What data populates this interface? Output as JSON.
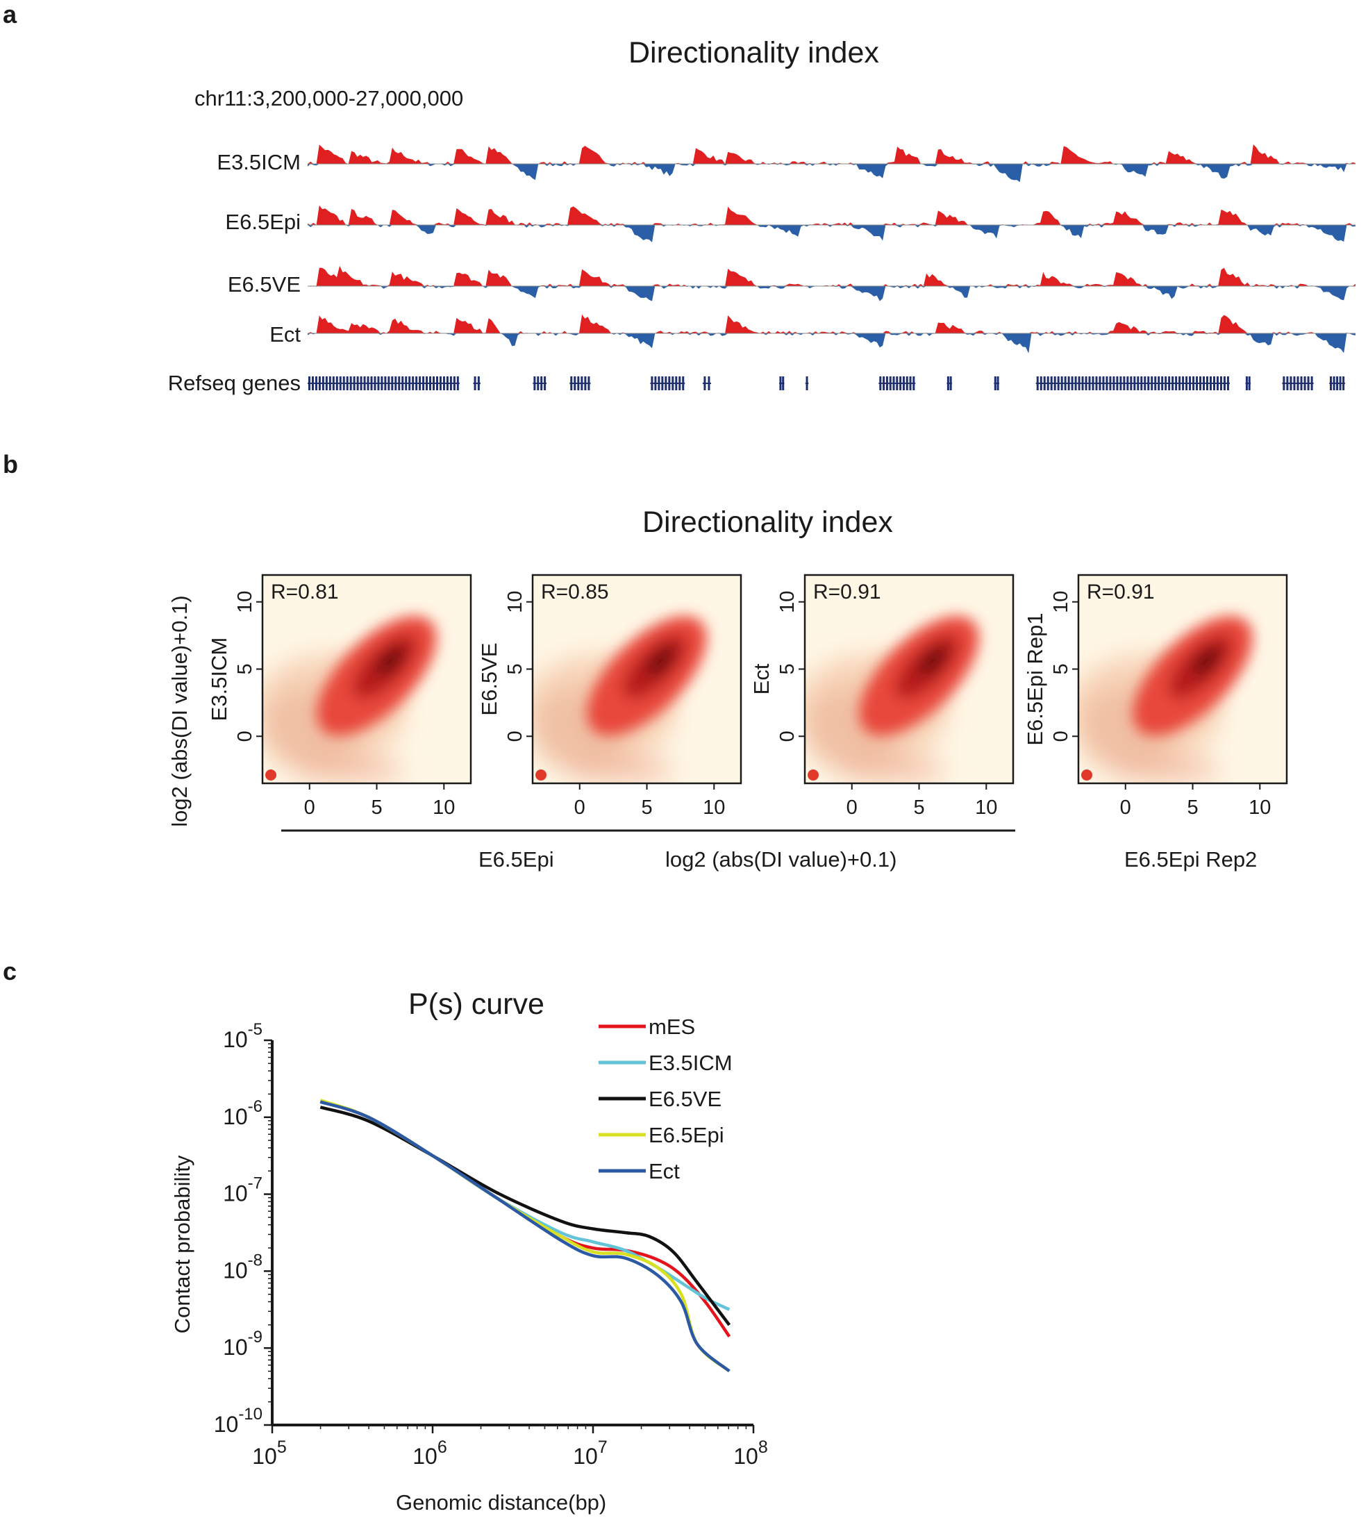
{
  "panel_a": {
    "letter": "a",
    "title": "Directionality index",
    "region": "chr11:3,200,000-27,000,000",
    "gene_track_label": "Refseq genes",
    "colors": {
      "positive": "#e02020",
      "negative": "#2a5fa8",
      "genes": "#1f2f6e"
    }
  },
  "panel_b": {
    "letter": "b",
    "title": "Directionality index",
    "y_axis_title": "log2 (abs(DI value)+0.1)",
    "x_axis_title": "log2 (abs(DI value)+0.1)",
    "x_group_label": "E6.5Epi",
    "x_rep_label": "E6.5Epi Rep2"
  },
  "panel_c": {
    "letter": "c"
  },
  "chart_data": [
    {
      "type": "area",
      "id": "di_tracks",
      "title": "Directionality index",
      "region": "chr11:3,200,000-27,000,000",
      "x_range_bp": [
        3200000,
        27000000
      ],
      "series": [
        {
          "name": "E3.5ICM",
          "peaks": [
            [
              0.01,
              0.9
            ],
            [
              0.04,
              0.6
            ],
            [
              0.08,
              0.7
            ],
            [
              0.14,
              0.8
            ],
            [
              0.17,
              0.9
            ],
            [
              0.22,
              -0.8
            ],
            [
              0.26,
              0.9
            ],
            [
              0.35,
              -0.6
            ],
            [
              0.37,
              0.7
            ],
            [
              0.4,
              0.5
            ],
            [
              0.55,
              -0.7
            ],
            [
              0.56,
              0.8
            ],
            [
              0.6,
              0.7
            ],
            [
              0.68,
              -0.9
            ],
            [
              0.72,
              0.8
            ],
            [
              0.8,
              -0.7
            ],
            [
              0.82,
              0.6
            ],
            [
              0.88,
              -0.8
            ],
            [
              0.9,
              0.9
            ],
            [
              0.99,
              -0.3
            ]
          ]
        },
        {
          "name": "E6.5Epi",
          "peaks": [
            [
              0.01,
              0.9
            ],
            [
              0.04,
              0.7
            ],
            [
              0.08,
              0.8
            ],
            [
              0.12,
              -0.5
            ],
            [
              0.14,
              0.8
            ],
            [
              0.17,
              0.9
            ],
            [
              0.25,
              0.9
            ],
            [
              0.33,
              -0.9
            ],
            [
              0.4,
              0.9
            ],
            [
              0.47,
              -0.5
            ],
            [
              0.55,
              -0.7
            ],
            [
              0.6,
              0.7
            ],
            [
              0.66,
              -0.6
            ],
            [
              0.7,
              0.7
            ],
            [
              0.74,
              -0.6
            ],
            [
              0.77,
              0.8
            ],
            [
              0.82,
              -0.5
            ],
            [
              0.87,
              0.9
            ],
            [
              0.92,
              -0.5
            ],
            [
              0.99,
              -0.9
            ]
          ]
        },
        {
          "name": "E6.5VE",
          "peaks": [
            [
              0.01,
              0.9
            ],
            [
              0.03,
              0.6
            ],
            [
              0.08,
              0.7
            ],
            [
              0.14,
              0.8
            ],
            [
              0.17,
              0.9
            ],
            [
              0.22,
              -0.5
            ],
            [
              0.26,
              0.9
            ],
            [
              0.33,
              -0.8
            ],
            [
              0.4,
              0.8
            ],
            [
              0.55,
              -0.7
            ],
            [
              0.59,
              0.6
            ],
            [
              0.63,
              -0.5
            ],
            [
              0.7,
              0.6
            ],
            [
              0.77,
              0.7
            ],
            [
              0.83,
              -0.6
            ],
            [
              0.87,
              0.9
            ],
            [
              0.99,
              -0.8
            ]
          ]
        },
        {
          "name": "Ect",
          "peaks": [
            [
              0.01,
              0.9
            ],
            [
              0.04,
              0.6
            ],
            [
              0.08,
              0.7
            ],
            [
              0.14,
              0.8
            ],
            [
              0.17,
              0.9
            ],
            [
              0.2,
              -0.8
            ],
            [
              0.26,
              0.9
            ],
            [
              0.33,
              -0.7
            ],
            [
              0.4,
              0.8
            ],
            [
              0.55,
              -0.7
            ],
            [
              0.6,
              0.6
            ],
            [
              0.69,
              -0.9
            ],
            [
              0.77,
              0.6
            ],
            [
              0.87,
              0.9
            ],
            [
              0.92,
              -0.6
            ],
            [
              0.99,
              -0.9
            ]
          ]
        }
      ],
      "genes": {
        "name": "Refseq genes",
        "clusters": [
          [
            0.0,
            0.145
          ],
          [
            0.158,
            0.165
          ],
          [
            0.215,
            0.228
          ],
          [
            0.25,
            0.27
          ],
          [
            0.327,
            0.36
          ],
          [
            0.377,
            0.385
          ],
          [
            0.45,
            0.455
          ],
          [
            0.475,
            0.478
          ],
          [
            0.545,
            0.58
          ],
          [
            0.61,
            0.615
          ],
          [
            0.655,
            0.66
          ],
          [
            0.695,
            0.88
          ],
          [
            0.895,
            0.9
          ],
          [
            0.93,
            0.96
          ],
          [
            0.975,
            0.99
          ]
        ]
      }
    },
    {
      "type": "heatmap",
      "id": "di_density_1",
      "ylabel": "E3.5ICM",
      "xlabel": "E6.5Epi",
      "annotation": "R=0.81",
      "x_ticks": [
        "0",
        "5",
        "10"
      ],
      "y_ticks": [
        "0",
        "5",
        "10"
      ],
      "x_tick_values": [
        0,
        5,
        10
      ],
      "y_tick_values": [
        0,
        5,
        10
      ],
      "xlim": [
        -3.5,
        12
      ],
      "ylim": [
        -3.5,
        12
      ]
    },
    {
      "type": "heatmap",
      "id": "di_density_2",
      "ylabel": "E6.5VE",
      "xlabel": "E6.5Epi",
      "annotation": "R=0.85",
      "x_ticks": [
        "0",
        "5",
        "10"
      ],
      "y_ticks": [
        "0",
        "5",
        "10"
      ],
      "x_tick_values": [
        0,
        5,
        10
      ],
      "y_tick_values": [
        0,
        5,
        10
      ],
      "xlim": [
        -3.5,
        12
      ],
      "ylim": [
        -3.5,
        12
      ]
    },
    {
      "type": "heatmap",
      "id": "di_density_3",
      "ylabel": "Ect",
      "xlabel": "E6.5Epi",
      "annotation": "R=0.91",
      "x_ticks": [
        "0",
        "5",
        "10"
      ],
      "y_ticks": [
        "0",
        "5",
        "10"
      ],
      "x_tick_values": [
        0,
        5,
        10
      ],
      "y_tick_values": [
        0,
        5,
        10
      ],
      "xlim": [
        -3.5,
        12
      ],
      "ylim": [
        -3.5,
        12
      ]
    },
    {
      "type": "heatmap",
      "id": "di_density_4",
      "ylabel": "E6.5Epi Rep1",
      "xlabel": "E6.5Epi Rep2",
      "annotation": "R=0.91",
      "x_ticks": [
        "0",
        "5",
        "10"
      ],
      "y_ticks": [
        "0",
        "5",
        "10"
      ],
      "x_tick_values": [
        0,
        5,
        10
      ],
      "y_tick_values": [
        0,
        5,
        10
      ],
      "xlim": [
        -3.5,
        12
      ],
      "ylim": [
        -3.5,
        12
      ]
    },
    {
      "type": "line",
      "id": "ps_curve",
      "title": "P(s) curve",
      "xlabel": "Genomic distance(bp)",
      "ylabel": "Contact probability",
      "x_scale": "log10",
      "y_scale": "log10",
      "xlim_log10": [
        5,
        8
      ],
      "ylim_log10": [
        -10,
        -5
      ],
      "x_ticks": [
        {
          "v": 5,
          "base": "10",
          "exp": "5"
        },
        {
          "v": 6,
          "base": "10",
          "exp": "6"
        },
        {
          "v": 7,
          "base": "10",
          "exp": "7"
        },
        {
          "v": 8,
          "base": "10",
          "exp": "8"
        }
      ],
      "y_ticks": [
        {
          "v": -5,
          "base": "10",
          "exp": "-5"
        },
        {
          "v": -6,
          "base": "10",
          "exp": "-6"
        },
        {
          "v": -7,
          "base": "10",
          "exp": "-7"
        },
        {
          "v": -8,
          "base": "10",
          "exp": "-8"
        },
        {
          "v": -9,
          "base": "10",
          "exp": "-9"
        },
        {
          "v": -10,
          "base": "10",
          "exp": "-10"
        }
      ],
      "legend_position": "top-right",
      "series": [
        {
          "name": "mES",
          "color": "#e3141b",
          "x": [
            5.3,
            5.6,
            6.0,
            6.4,
            6.8,
            7.0,
            7.2,
            7.4,
            7.55,
            7.7,
            7.85
          ],
          "y": [
            -5.8,
            -6.0,
            -6.5,
            -7.05,
            -7.55,
            -7.7,
            -7.73,
            -7.85,
            -8.05,
            -8.4,
            -8.85
          ]
        },
        {
          "name": "E3.5ICM",
          "color": "#62c4d6",
          "x": [
            5.3,
            5.6,
            6.0,
            6.4,
            6.8,
            7.0,
            7.2,
            7.4,
            7.55,
            7.7,
            7.85
          ],
          "y": [
            -5.8,
            -6.0,
            -6.5,
            -7.05,
            -7.5,
            -7.62,
            -7.73,
            -7.95,
            -8.15,
            -8.35,
            -8.5
          ]
        },
        {
          "name": "E6.5VE",
          "color": "#111111",
          "x": [
            5.3,
            5.6,
            6.0,
            6.4,
            6.8,
            7.0,
            7.2,
            7.35,
            7.5,
            7.65,
            7.85
          ],
          "y": [
            -5.87,
            -6.05,
            -6.5,
            -6.98,
            -7.35,
            -7.45,
            -7.5,
            -7.55,
            -7.75,
            -8.15,
            -8.7
          ]
        },
        {
          "name": "E6.5Epi",
          "color": "#d8e021",
          "x": [
            5.3,
            5.6,
            6.0,
            6.4,
            6.8,
            7.0,
            7.2,
            7.4,
            7.55,
            7.65,
            7.85
          ],
          "y": [
            -5.78,
            -6.0,
            -6.5,
            -7.05,
            -7.55,
            -7.75,
            -7.78,
            -7.95,
            -8.3,
            -8.95,
            -9.3
          ]
        },
        {
          "name": "Ect",
          "color": "#2b59a5",
          "x": [
            5.3,
            5.6,
            6.0,
            6.4,
            6.8,
            7.0,
            7.2,
            7.4,
            7.55,
            7.65,
            7.85
          ],
          "y": [
            -5.8,
            -6.0,
            -6.5,
            -7.05,
            -7.6,
            -7.8,
            -7.83,
            -8.05,
            -8.4,
            -8.95,
            -9.3
          ]
        }
      ]
    }
  ]
}
